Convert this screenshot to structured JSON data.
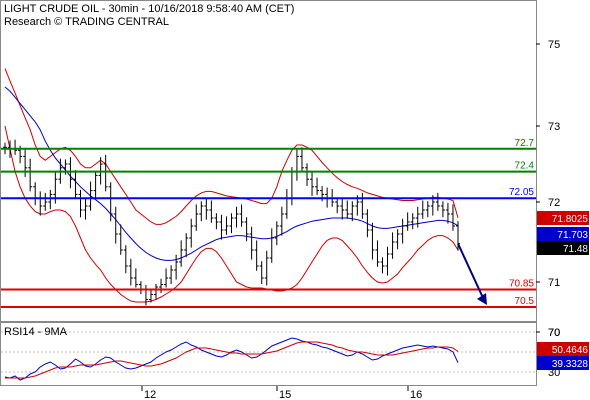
{
  "header": {
    "title": "LIGHT CRUDE OIL - 30min - 10/16/2018 9:58:40 AM (CET)",
    "source": "Research © TRADING CENTRAL"
  },
  "colors": {
    "resistance": "#008000",
    "pivot": "#0000ff",
    "support": "#e00000",
    "band": "#cc0000",
    "ma_blue": "#0000cc",
    "projection_arrow": "#000080",
    "price_bars": "#000000",
    "rsi": "#0000cc",
    "rsi_ma": "#cc0000"
  },
  "chart_data": [
    {
      "type": "line",
      "title": "LIGHT CRUDE OIL - 30min",
      "y_ticks": [
        "75",
        "73",
        "72",
        "71",
        "70"
      ],
      "x_ticks": [
        "12",
        "15",
        "16"
      ],
      "levels": [
        {
          "label": "72.7",
          "value": 72.7,
          "kind": "resistance"
        },
        {
          "label": "72.4",
          "value": 72.4,
          "kind": "resistance"
        },
        {
          "label": "72.05",
          "value": 72.05,
          "kind": "pivot"
        },
        {
          "label": "70.85",
          "value": 70.85,
          "kind": "support"
        },
        {
          "label": "70.5",
          "value": 70.5,
          "kind": "support"
        }
      ],
      "current_tags": [
        {
          "label": "71.8025",
          "value": 71.8025,
          "color": "#cc0000"
        },
        {
          "label": "71.703",
          "value": 71.703,
          "color": "#0000cc"
        },
        {
          "label": "71.48",
          "value": 71.48,
          "color": "#000000"
        }
      ],
      "price_close": [
        72.72,
        72.7,
        72.68,
        72.6,
        72.45,
        72.2,
        72.05,
        71.95,
        72.0,
        72.1,
        72.3,
        72.45,
        72.5,
        72.3,
        72.1,
        71.9,
        71.95,
        72.15,
        72.35,
        72.5,
        72.2,
        71.85,
        71.6,
        71.4,
        71.2,
        71.05,
        70.95,
        70.85,
        70.65,
        70.75,
        70.9,
        70.95,
        71.05,
        71.15,
        71.25,
        71.4,
        71.55,
        71.7,
        71.85,
        71.95,
        71.9,
        71.8,
        71.75,
        71.65,
        71.7,
        71.8,
        71.85,
        71.75,
        71.6,
        71.4,
        71.2,
        71.05,
        71.3,
        71.55,
        71.7,
        71.85,
        72.05,
        72.4,
        72.6,
        72.45,
        72.3,
        72.2,
        72.15,
        72.1,
        72.05,
        72.0,
        71.95,
        71.9,
        71.85,
        71.95,
        72.0,
        71.85,
        71.65,
        71.4,
        71.25,
        71.2,
        71.35,
        71.5,
        71.6,
        71.7,
        71.75,
        71.8,
        71.85,
        71.9,
        71.95,
        72.0,
        71.95,
        71.9,
        71.85,
        71.7,
        71.48
      ],
      "ma_blue": [
        73.95,
        73.85,
        73.7,
        73.55,
        73.4,
        73.25,
        73.1,
        72.95,
        72.8,
        72.68,
        72.58,
        72.5,
        72.42,
        72.34,
        72.27,
        72.2,
        72.14,
        72.08,
        72.03,
        71.98,
        71.92,
        71.85,
        71.78,
        71.7,
        71.62,
        71.55,
        71.48,
        71.42,
        71.37,
        71.33,
        71.3,
        71.28,
        71.27,
        71.27,
        71.28,
        71.3,
        71.33,
        71.36,
        71.4,
        71.44,
        71.47,
        71.5,
        71.53,
        71.55,
        71.56,
        71.57,
        71.58,
        71.58,
        71.57,
        71.56,
        71.55,
        71.54,
        71.54,
        71.55,
        71.57,
        71.6,
        71.63,
        71.67,
        71.7,
        71.72,
        71.74,
        71.76,
        71.77,
        71.78,
        71.79,
        71.8,
        71.8,
        71.8,
        71.8,
        71.79,
        71.78,
        71.76,
        71.73,
        71.7,
        71.68,
        71.67,
        71.67,
        71.68,
        71.69,
        71.7,
        71.71,
        71.72,
        71.73,
        71.74,
        71.75,
        71.76,
        71.77,
        71.77,
        71.76,
        71.74,
        71.703
      ],
      "band_upper": [
        74.4,
        74.1,
        73.8,
        73.5,
        73.2,
        72.95,
        72.75,
        72.6,
        72.55,
        72.6,
        72.65,
        72.7,
        72.72,
        72.68,
        72.6,
        72.5,
        72.45,
        72.45,
        72.5,
        72.55,
        72.5,
        72.4,
        72.3,
        72.2,
        72.1,
        72.0,
        71.9,
        71.85,
        71.8,
        71.75,
        71.72,
        71.72,
        71.74,
        71.78,
        71.82,
        71.88,
        71.95,
        72.02,
        72.08,
        72.12,
        72.14,
        72.14,
        72.12,
        72.1,
        72.08,
        72.07,
        72.06,
        72.05,
        72.04,
        72.02,
        72.0,
        71.98,
        71.98,
        72.05,
        72.2,
        72.4,
        72.55,
        72.68,
        72.75,
        72.75,
        72.72,
        72.68,
        72.6,
        72.52,
        72.45,
        72.38,
        72.32,
        72.27,
        72.23,
        72.2,
        72.18,
        72.15,
        72.12,
        72.1,
        72.08,
        72.06,
        72.05,
        72.04,
        72.03,
        72.02,
        72.02,
        72.02,
        72.03,
        72.04,
        72.05,
        72.06,
        72.06,
        72.05,
        72.04,
        72.02,
        71.8025
      ],
      "band_lower": [
        73.0,
        72.7,
        72.4,
        72.2,
        72.05,
        71.95,
        71.88,
        71.85,
        71.85,
        71.88,
        71.9,
        71.9,
        71.88,
        71.82,
        71.7,
        71.55,
        71.4,
        71.3,
        71.22,
        71.15,
        71.05,
        70.95,
        70.85,
        70.75,
        70.68,
        70.62,
        70.6,
        70.6,
        70.6,
        70.62,
        70.65,
        70.7,
        70.76,
        70.82,
        70.9,
        71.0,
        71.1,
        71.2,
        71.3,
        71.38,
        71.42,
        71.42,
        71.38,
        71.3,
        71.2,
        71.1,
        71.0,
        70.95,
        70.9,
        70.88,
        70.88,
        70.88,
        70.86,
        70.84,
        70.82,
        70.82,
        70.84,
        70.88,
        70.95,
        71.05,
        71.15,
        71.25,
        71.35,
        71.45,
        71.52,
        71.55,
        71.55,
        71.52,
        71.45,
        71.38,
        71.3,
        71.2,
        71.12,
        71.05,
        71.0,
        70.98,
        71.0,
        71.05,
        71.1,
        71.18,
        71.25,
        71.32,
        71.4,
        71.46,
        71.52,
        71.56,
        71.58,
        71.58,
        71.55,
        71.5,
        71.4
      ],
      "projection": {
        "from": 71.48,
        "to": 70.5
      }
    },
    {
      "type": "line",
      "title": "RSI14 - 9MA",
      "y_ticks": [
        "70",
        "30"
      ],
      "tags": [
        {
          "label": "50.4646",
          "value": 50.4646,
          "color": "#cc0000"
        },
        {
          "label": "39.3328",
          "value": 39.3328,
          "color": "#0000cc"
        }
      ],
      "series": [
        {
          "name": "RSI14",
          "values": [
            25,
            24,
            26,
            22,
            24,
            28,
            30,
            35,
            38,
            40,
            37,
            33,
            34,
            38,
            43,
            40,
            36,
            35,
            38,
            42,
            45,
            44,
            40,
            37,
            34,
            33,
            34,
            36,
            38,
            40,
            44,
            47,
            50,
            52,
            55,
            58,
            60,
            57,
            55,
            52,
            50,
            48,
            46,
            45,
            47,
            50,
            52,
            50,
            47,
            44,
            45,
            48,
            52,
            56,
            58,
            60,
            62,
            64,
            63,
            61,
            60,
            58,
            57,
            55,
            54,
            52,
            50,
            48,
            46,
            47,
            50,
            48,
            45,
            42,
            43,
            46,
            48,
            50,
            52,
            54,
            55,
            56,
            57,
            56,
            55,
            56,
            55,
            54,
            53,
            50,
            39.3328
          ]
        },
        {
          "name": "9MA",
          "values": [
            24,
            24,
            24,
            24,
            24,
            25,
            26,
            28,
            30,
            32,
            34,
            35,
            35,
            35,
            36,
            37,
            37,
            37,
            37,
            38,
            39,
            40,
            41,
            41,
            40,
            39,
            38,
            37,
            36,
            36,
            37,
            38,
            40,
            42,
            44,
            47,
            50,
            52,
            54,
            54,
            54,
            53,
            52,
            51,
            50,
            49,
            49,
            48,
            48,
            48,
            48,
            48,
            49,
            50,
            51,
            53,
            55,
            57,
            59,
            60,
            60,
            60,
            60,
            59,
            58,
            57,
            55,
            54,
            52,
            51,
            50,
            50,
            49,
            48,
            47,
            47,
            47,
            47,
            48,
            49,
            50,
            51,
            52,
            53,
            54,
            54,
            55,
            55,
            55,
            54,
            50.4646
          ]
        }
      ]
    }
  ]
}
